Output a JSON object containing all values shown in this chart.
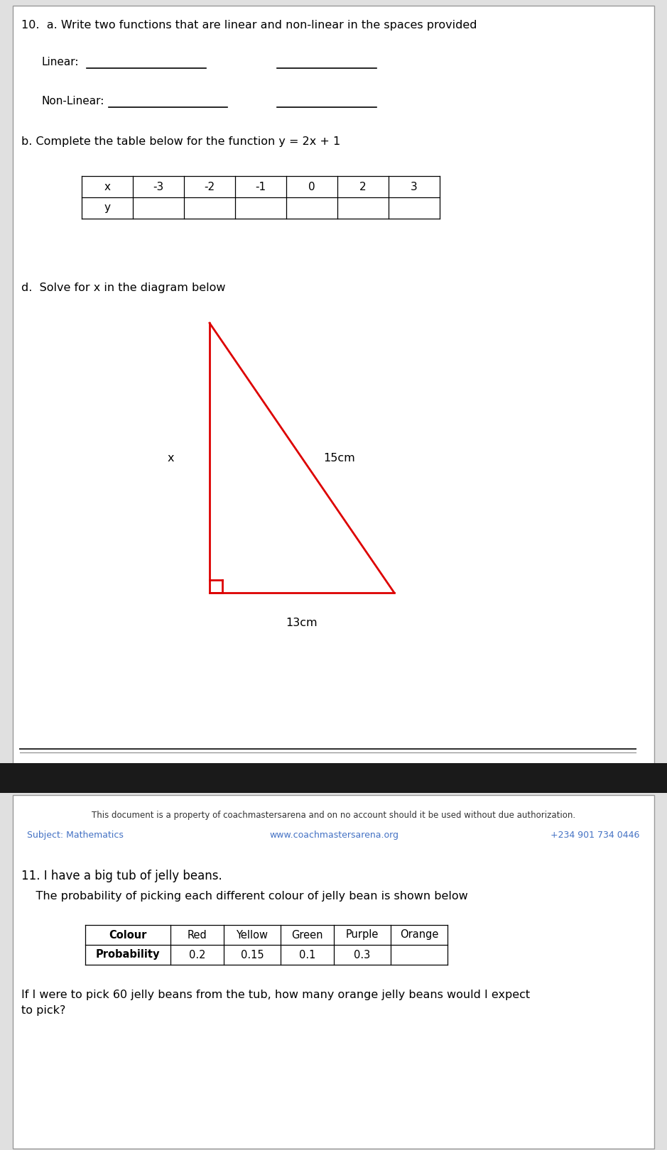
{
  "bg_color": "#ffffff",
  "q10_title": "10.  a. Write two functions that are linear and non-linear in the spaces provided",
  "linear_label": "Linear:",
  "nonlinear_label": "Non-Linear:",
  "q_b_title": "b. Complete the table below for the function y = 2x + 1",
  "table_x_vals": [
    "x",
    "-3",
    "-2",
    "-1",
    "0",
    "2",
    "3"
  ],
  "table_y_label": "y",
  "q_d_title": "d.  Solve for x in the diagram below",
  "triangle_color": "#dd0000",
  "label_15cm": "15cm",
  "label_13cm": "13cm",
  "label_x": "x",
  "dark_band_color": "#1a1a1a",
  "footer_copyright": "This document is a property of coachmastersarena and on no account should it be used without due authorization.",
  "footer_subject": "Subject: Mathematics",
  "footer_url": "www.coachmastersarena.org",
  "footer_phone": "+234 901 734 0446",
  "footer_link_color": "#4472c4",
  "q11_title": "11. I have a big tub of jelly beans.",
  "q11_sub": "    The probability of picking each different colour of jelly bean is shown below",
  "jelly_colours": [
    "Colour",
    "Red",
    "Yellow",
    "Green",
    "Purple",
    "Orange"
  ],
  "jelly_probs": [
    "Probability",
    "0.2",
    "0.15",
    "0.1",
    "0.3",
    ""
  ],
  "q11_question": "If I were to pick 60 jelly beans from the tub, how many orange jelly beans would I expect\nto pick?"
}
